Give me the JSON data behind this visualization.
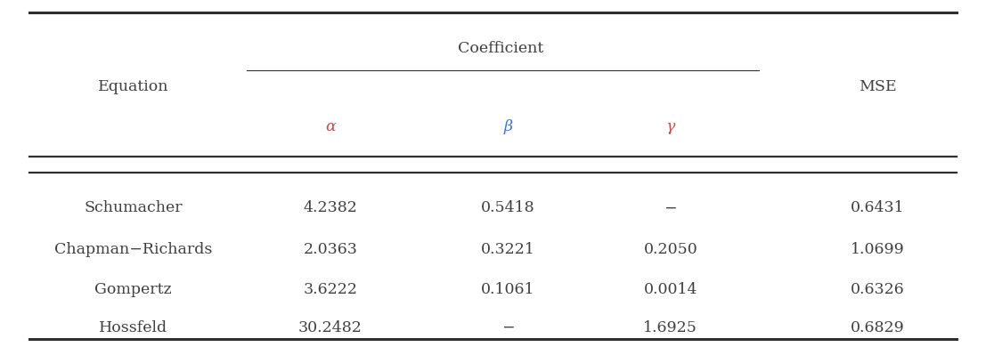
{
  "title_coefficient": "Coefficient",
  "col_equation": "Equation",
  "col_mse": "MSE",
  "col_alpha": "α",
  "col_beta": "β",
  "col_gamma": "γ",
  "rows": [
    {
      "equation": "Schumacher",
      "alpha": "4.2382",
      "beta": "0.5418",
      "gamma": "−",
      "mse": "0.6431"
    },
    {
      "equation": "Chapman−Richards",
      "alpha": "2.0363",
      "beta": "0.3221",
      "gamma": "0.2050",
      "mse": "1.0699"
    },
    {
      "equation": "Gompertz",
      "alpha": "3.6222",
      "beta": "0.1061",
      "gamma": "0.0014",
      "mse": "0.6326"
    },
    {
      "equation": "Hossfeld",
      "alpha": "30.2482",
      "beta": "−",
      "gamma": "1.6925",
      "mse": "0.6829"
    }
  ],
  "alpha_color": "#C0504D",
  "beta_color": "#4472C4",
  "gamma_color": "#C0504D",
  "text_color": "#404040",
  "bg_color": "#FFFFFF",
  "line_color": "#2F2F2F",
  "font_size": 12.5,
  "fig_width": 11.07,
  "fig_height": 3.9,
  "dpi": 100
}
